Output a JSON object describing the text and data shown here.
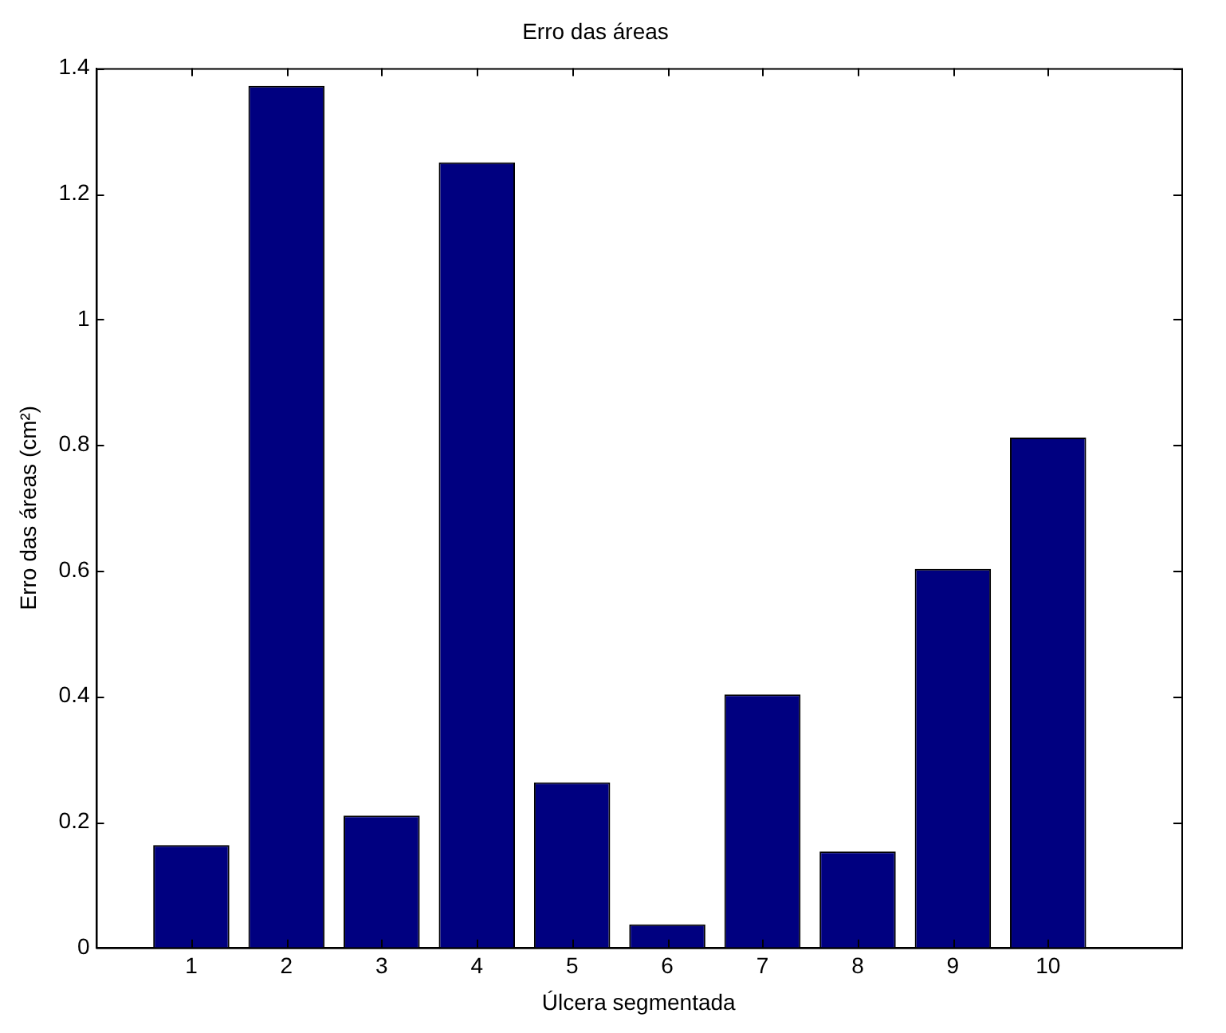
{
  "chart_data": {
    "type": "bar",
    "title": "Erro das áreas",
    "xlabel": "Úlcera segmentada",
    "ylabel": "Erro das áreas (cm²)",
    "x": [
      1,
      2,
      3,
      4,
      5,
      6,
      7,
      8,
      9,
      10
    ],
    "values": [
      0.163,
      1.372,
      0.21,
      1.25,
      0.263,
      0.037,
      0.403,
      0.153,
      0.603,
      0.812
    ],
    "color": "#000080",
    "xlim": [
      0,
      11.4
    ],
    "xticks": [
      1,
      2,
      3,
      4,
      5,
      6,
      7,
      8,
      9,
      10
    ],
    "ylim": [
      0,
      1.4
    ],
    "yticks": [
      0,
      0.2,
      0.4,
      0.6,
      0.8,
      1,
      1.2,
      1.4
    ],
    "grid": false,
    "legend": false
  }
}
